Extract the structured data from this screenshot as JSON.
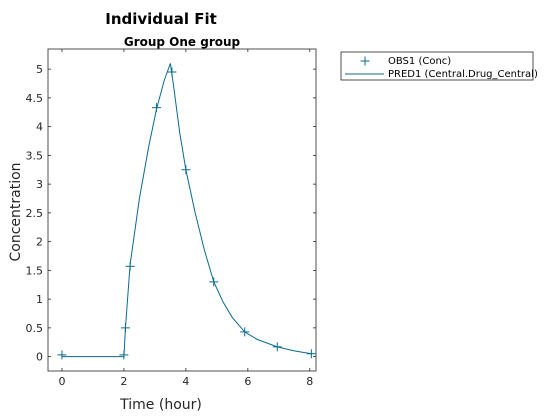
{
  "chart_data": {
    "type": "line",
    "title": "Individual Fit",
    "subtitle": "Group One group",
    "xlabel": "Time (hour)",
    "ylabel": "Concentration",
    "xlim": [
      -0.45,
      8.2
    ],
    "ylim": [
      -0.25,
      5.35
    ],
    "xticks": [
      0,
      2,
      4,
      6,
      8
    ],
    "yticks": [
      0,
      0.5,
      1,
      1.5,
      2,
      2.5,
      3,
      3.5,
      4,
      4.5,
      5
    ],
    "grid": false,
    "legend_position": "outside-right",
    "series": [
      {
        "name": "OBS1 (Conc)",
        "kind": "marker",
        "marker": "plus",
        "color": "#0a6a8c",
        "x": [
          0,
          2,
          2.05,
          2.2,
          3.05,
          3.55,
          4,
          4.9,
          5.9,
          6.95,
          8.05
        ],
        "y": [
          0.03,
          0.03,
          0.5,
          1.57,
          4.33,
          4.95,
          3.25,
          1.3,
          0.43,
          0.17,
          0.05
        ]
      },
      {
        "name": "PRED1 (Central.Drug_Central)",
        "kind": "line",
        "color": "#0a6a8c",
        "x": [
          0,
          1,
          2,
          2.05,
          2.2,
          2.5,
          2.8,
          3.05,
          3.3,
          3.5,
          3.6,
          3.8,
          4,
          4.3,
          4.6,
          4.9,
          5.2,
          5.5,
          5.9,
          6.3,
          6.95,
          7.5,
          8.05
        ],
        "y": [
          0,
          0,
          0,
          0.5,
          1.6,
          2.75,
          3.65,
          4.3,
          4.8,
          5.1,
          4.72,
          3.9,
          3.25,
          2.5,
          1.85,
          1.3,
          0.95,
          0.68,
          0.43,
          0.3,
          0.17,
          0.1,
          0.05
        ]
      }
    ]
  }
}
